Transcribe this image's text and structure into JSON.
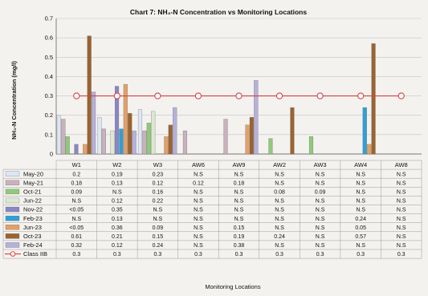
{
  "chart_data": {
    "type": "bar",
    "title": "Chart 7: NH₃-N Concentration vs Monitoring Locations",
    "xlabel": "Monitoring Locations",
    "ylabel": "NH₃-N Concentration (mg/l)",
    "ylim": [
      0,
      0.7
    ],
    "yticks": [
      "0",
      "0.1",
      "0.2",
      "0.3",
      "0.4",
      "0.5",
      "0.6",
      "0.7"
    ],
    "grid": true,
    "categories": [
      "W1",
      "W2",
      "W3",
      "AW6",
      "AW9",
      "AW2",
      "AW3",
      "AW4",
      "AW8"
    ],
    "series": [
      {
        "name": "May-20",
        "color": "#dce6f5",
        "values": [
          0.2,
          0.19,
          0.23,
          null,
          null,
          null,
          null,
          null,
          null
        ],
        "labels": [
          "0.2",
          "0.19",
          "0.23",
          "N.S",
          "N.S",
          "N.S",
          "N.S",
          "N.S",
          "N.S"
        ]
      },
      {
        "name": "May-21",
        "color": "#c9b1bd",
        "values": [
          0.18,
          0.13,
          0.12,
          0.12,
          0.18,
          null,
          null,
          null,
          null
        ],
        "labels": [
          "0.18",
          "0.13",
          "0.12",
          "0.12",
          "0.18",
          "N.S",
          "N.S",
          "N.S",
          "N.S"
        ]
      },
      {
        "name": "Oct-21",
        "color": "#8fca7a",
        "values": [
          0.09,
          null,
          0.16,
          null,
          null,
          0.08,
          0.09,
          null,
          null
        ],
        "labels": [
          "0.09",
          "N.S",
          "0.16",
          "N.S",
          "N.S",
          "0.08",
          "0.09",
          "N.S",
          "N.S"
        ]
      },
      {
        "name": "Jun-22",
        "color": "#dce8d0",
        "values": [
          null,
          0.12,
          0.22,
          null,
          null,
          null,
          null,
          null,
          null
        ],
        "labels": [
          "N.S",
          "0.12",
          "0.22",
          "N.S",
          "N.S",
          "N.S",
          "N.S",
          "N.S",
          "N.S"
        ]
      },
      {
        "name": "Nov-22",
        "color": "#8a86c4",
        "values": [
          0.05,
          0.35,
          null,
          null,
          null,
          null,
          null,
          null,
          null
        ],
        "labels": [
          "<0.05",
          "0.35",
          "N.S",
          "N.S",
          "N.S",
          "N.S",
          "N.S",
          "N.S",
          "N.S"
        ]
      },
      {
        "name": "Feb-23",
        "color": "#2f9fd8",
        "values": [
          null,
          0.13,
          null,
          null,
          null,
          null,
          null,
          0.24,
          null
        ],
        "labels": [
          "N.S",
          "0.13",
          "N.S",
          "N.S",
          "N.S",
          "N.S",
          "N.S",
          "0.24",
          "N.S"
        ]
      },
      {
        "name": "Jun-23",
        "color": "#e3a066",
        "values": [
          0.05,
          0.36,
          0.09,
          null,
          0.15,
          null,
          null,
          0.05,
          null
        ],
        "labels": [
          "<0.05",
          "0.36",
          "0.09",
          "N.S",
          "0.15",
          "N.S",
          "N.S",
          "0.05",
          "N.S"
        ]
      },
      {
        "name": "Oct-23",
        "color": "#9a6330",
        "values": [
          0.61,
          0.21,
          0.15,
          null,
          0.19,
          0.24,
          null,
          0.57,
          null
        ],
        "labels": [
          "0.61",
          "0.21",
          "0.15",
          "N.S",
          "0.19",
          "0.24",
          "N.S",
          "0.57",
          "N.S"
        ]
      },
      {
        "name": "Feb-24",
        "color": "#b6b0dc",
        "values": [
          0.32,
          0.12,
          0.24,
          null,
          0.38,
          null,
          null,
          null,
          null
        ],
        "labels": [
          "0.32",
          "0.12",
          "0.24",
          "N.S",
          "0.38",
          "N.S",
          "N.S",
          "N.S",
          "N.S"
        ]
      }
    ],
    "limit": {
      "name": "Class IIB",
      "color": "#d94040",
      "values": [
        0.3,
        0.3,
        0.3,
        0.3,
        0.3,
        0.3,
        0.3,
        0.3,
        0.3
      ],
      "labels": [
        "0.3",
        "0.3",
        "0.3",
        "0.3",
        "0.3",
        "0.3",
        "0.3",
        "0.3",
        "0.3"
      ]
    }
  }
}
